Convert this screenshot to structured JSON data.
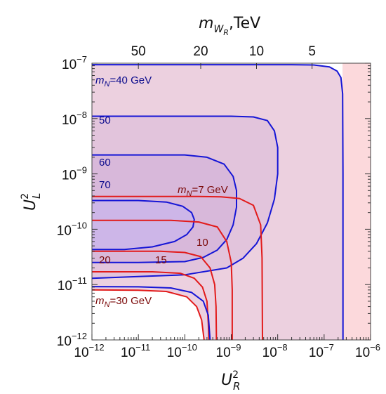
{
  "chart_data": {
    "type": "line",
    "title": "",
    "xlabel": "U_R^2",
    "ylabel": "U_L^2",
    "top_xlabel": "m_{W_R},TeV",
    "x_scale": "log",
    "y_scale": "log",
    "xlim": [
      1e-12,
      1e-06
    ],
    "ylim": [
      1e-12,
      1e-07
    ],
    "x_ticks": [
      {
        "value": 1e-12,
        "mant": "10",
        "exp": "−12"
      },
      {
        "value": 1e-11,
        "mant": "10",
        "exp": "−11"
      },
      {
        "value": 1e-10,
        "mant": "10",
        "exp": "−10"
      },
      {
        "value": 1e-09,
        "mant": "10",
        "exp": "−9"
      },
      {
        "value": 1e-08,
        "mant": "10",
        "exp": "−8"
      },
      {
        "value": 1e-07,
        "mant": "10",
        "exp": "−7"
      },
      {
        "value": 1e-06,
        "mant": "10",
        "exp": "−6"
      }
    ],
    "y_ticks": [
      {
        "value": 1e-07,
        "mant": "10",
        "exp": "−7"
      },
      {
        "value": 1e-08,
        "mant": "10",
        "exp": "−8"
      },
      {
        "value": 1e-09,
        "mant": "10",
        "exp": "−9"
      },
      {
        "value": 1e-10,
        "mant": "10",
        "exp": "−10"
      },
      {
        "value": 1e-11,
        "mant": "10",
        "exp": "−11"
      },
      {
        "value": 1e-12,
        "mant": "10",
        "exp": "−12"
      }
    ],
    "top_ticks": [
      {
        "label": "50",
        "x_value": 1e-11
      },
      {
        "label": "20",
        "x_value": 2.2e-10
      },
      {
        "label": "10",
        "x_value": 3.5e-09
      },
      {
        "label": "5",
        "x_value": 5.5e-08
      }
    ],
    "shaded_regions": [
      {
        "name": "excluded",
        "color": "#fcd9dc",
        "x_min": 2.5e-07
      },
      {
        "name": "contour-40",
        "color": "#ecd0df"
      },
      {
        "name": "contour-50",
        "color": "#e2c4dc"
      },
      {
        "name": "contour-60",
        "color": "#d8b8da"
      },
      {
        "name": "contour-70",
        "color": "#cdb6e8"
      }
    ],
    "series": [
      {
        "label": "m_N=40 GeV",
        "color": "#1515d6",
        "points": [
          [
            1e-12,
            9.4e-08
          ],
          [
            2e-08,
            9.4e-08
          ],
          [
            6e-08,
            9.3e-08
          ],
          [
            1.3e-07,
            8.6e-08
          ],
          [
            1.9e-07,
            7.2e-08
          ],
          [
            2.3e-07,
            5.5e-08
          ],
          [
            2.5e-07,
            2.8e-08
          ],
          [
            2.55e-07,
            1e-09
          ],
          [
            2.55e-07,
            1e-12
          ]
        ]
      },
      {
        "label": "50",
        "color": "#1515d6",
        "points": [
          [
            1e-12,
            1.1e-08
          ],
          [
            1e-09,
            1.1e-08
          ],
          [
            3e-09,
            1.07e-08
          ],
          [
            6e-09,
            9.2e-09
          ],
          [
            8.5e-09,
            6e-09
          ],
          [
            1e-08,
            3e-09
          ],
          [
            1e-08,
            1e-09
          ],
          [
            8.5e-09,
            3.5e-10
          ],
          [
            6e-09,
            1.3e-10
          ],
          [
            3.5e-09,
            5.5e-11
          ],
          [
            1.8e-09,
            3e-11
          ],
          [
            8e-10,
            2e-11
          ],
          [
            1e-10,
            1.5e-11
          ],
          [
            1e-11,
            1.4e-11
          ],
          [
            1e-12,
            1.3e-11
          ]
        ]
      },
      {
        "label": "60",
        "color": "#1515d6",
        "points": [
          [
            1e-12,
            2.2e-09
          ],
          [
            1e-10,
            2.2e-09
          ],
          [
            3e-10,
            2e-09
          ],
          [
            7e-10,
            1.5e-09
          ],
          [
            1.1e-09,
            9e-10
          ],
          [
            1.3e-09,
            5e-10
          ],
          [
            1.3e-09,
            2.5e-10
          ],
          [
            1.1e-09,
            1.2e-10
          ],
          [
            8e-10,
            6.5e-11
          ],
          [
            5e-10,
            4.2e-11
          ],
          [
            2.5e-10,
            3.1e-11
          ],
          [
            1e-10,
            2.6e-11
          ],
          [
            1e-11,
            2.5e-11
          ],
          [
            1e-12,
            2.5e-11
          ]
        ]
      },
      {
        "label": "70",
        "color": "#1515d6",
        "points": [
          [
            1e-12,
            3.3e-10
          ],
          [
            1e-11,
            3.3e-10
          ],
          [
            4e-11,
            3.1e-10
          ],
          [
            9e-11,
            2.6e-10
          ],
          [
            1.4e-10,
            2e-10
          ],
          [
            1.6e-10,
            1.5e-10
          ],
          [
            1.5e-10,
            1.1e-10
          ],
          [
            1.1e-10,
            8e-11
          ],
          [
            6e-11,
            6e-11
          ],
          [
            2e-11,
            4.8e-11
          ],
          [
            5e-12,
            4.3e-11
          ],
          [
            1e-12,
            4.3e-11
          ]
        ]
      },
      {
        "label": "m_N=7 GeV",
        "color": "#e21b1b",
        "points": [
          [
            1e-12,
            3.9e-10
          ],
          [
            2e-10,
            3.9e-10
          ],
          [
            6e-10,
            3.85e-10
          ],
          [
            1.5e-09,
            3.6e-10
          ],
          [
            3e-09,
            2.7e-10
          ],
          [
            4.3e-09,
            1.2e-10
          ],
          [
            4.6e-09,
            3e-11
          ],
          [
            4.7e-09,
            1e-12
          ]
        ]
      },
      {
        "label": "10",
        "color": "#e21b1b",
        "points": [
          [
            1e-12,
            1.45e-10
          ],
          [
            5e-11,
            1.45e-10
          ],
          [
            2e-10,
            1.35e-10
          ],
          [
            5e-10,
            1.1e-10
          ],
          [
            8e-10,
            6e-11
          ],
          [
            1e-09,
            2.5e-11
          ],
          [
            1.05e-09,
            8e-12
          ],
          [
            1.05e-09,
            1e-12
          ]
        ]
      },
      {
        "label": "15",
        "color": "#e21b1b",
        "points": [
          [
            1e-12,
            4e-11
          ],
          [
            3e-11,
            4e-11
          ],
          [
            1e-10,
            3.8e-11
          ],
          [
            2.2e-10,
            3.2e-11
          ],
          [
            3.5e-10,
            2e-11
          ],
          [
            4.4e-10,
            1e-11
          ],
          [
            4.7e-10,
            4e-12
          ],
          [
            4.8e-10,
            1e-12
          ]
        ]
      },
      {
        "label": "20",
        "color": "#e21b1b",
        "points": [
          [
            1e-12,
            1.7e-11
          ],
          [
            2e-11,
            1.7e-11
          ],
          [
            8e-11,
            1.6e-11
          ],
          [
            1.6e-10,
            1.3e-11
          ],
          [
            2.4e-10,
            9e-12
          ],
          [
            3e-10,
            5e-12
          ],
          [
            3.2e-10,
            2e-12
          ],
          [
            3.3e-10,
            1e-12
          ]
        ]
      },
      {
        "label": "m_N=30 GeV",
        "color": "#e21b1b",
        "points": [
          [
            1e-12,
            8e-12
          ],
          [
            1e-11,
            7.9e-12
          ],
          [
            4e-11,
            7.5e-12
          ],
          [
            1.1e-10,
            6e-12
          ],
          [
            1.8e-10,
            4e-12
          ],
          [
            2.3e-10,
            2.3e-12
          ],
          [
            2.6e-10,
            1e-12
          ]
        ]
      },
      {
        "label": "m_N=30 GeV blue",
        "color": "#1515d6",
        "points": [
          [
            1e-12,
            9.2e-12
          ],
          [
            1e-11,
            9.1e-12
          ],
          [
            5e-11,
            8.7e-12
          ],
          [
            1.4e-10,
            7.2e-12
          ],
          [
            2.5e-10,
            5e-12
          ],
          [
            3.2e-10,
            2.8e-12
          ],
          [
            3.5e-10,
            1e-12
          ]
        ]
      }
    ],
    "annotations": [
      {
        "key": "l40",
        "text": "=40 GeV",
        "prefix": "m",
        "sub": "N",
        "color": "blue"
      },
      {
        "key": "l50",
        "text": "50",
        "color": "blue"
      },
      {
        "key": "l60",
        "text": "60",
        "color": "blue"
      },
      {
        "key": "l70",
        "text": "70",
        "color": "blue"
      },
      {
        "key": "l7",
        "text": "=7 GeV",
        "prefix": "m",
        "sub": "N",
        "color": "red"
      },
      {
        "key": "l10",
        "text": "10",
        "color": "red"
      },
      {
        "key": "l15",
        "text": "15",
        "color": "red"
      },
      {
        "key": "l20",
        "text": "20",
        "color": "red"
      },
      {
        "key": "l30",
        "text": "=30 GeV",
        "prefix": "m",
        "sub": "N",
        "color": "red"
      }
    ]
  }
}
